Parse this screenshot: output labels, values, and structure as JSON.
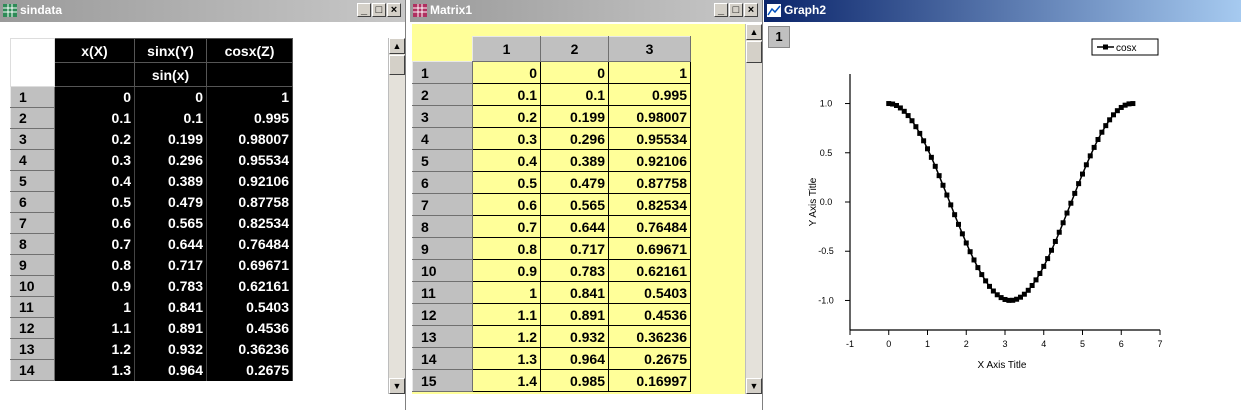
{
  "sindata": {
    "title": "sindata",
    "controls": [
      "_",
      "□",
      "×"
    ],
    "columns": [
      "x(X)",
      "sinx(Y)",
      "cosx(Z)"
    ],
    "labels": [
      "",
      "sin(x)",
      ""
    ],
    "rows": [
      [
        "1",
        "0",
        "0",
        "1"
      ],
      [
        "2",
        "0.1",
        "0.1",
        "0.995"
      ],
      [
        "3",
        "0.2",
        "0.199",
        "0.98007"
      ],
      [
        "4",
        "0.3",
        "0.296",
        "0.95534"
      ],
      [
        "5",
        "0.4",
        "0.389",
        "0.92106"
      ],
      [
        "6",
        "0.5",
        "0.479",
        "0.87758"
      ],
      [
        "7",
        "0.6",
        "0.565",
        "0.82534"
      ],
      [
        "8",
        "0.7",
        "0.644",
        "0.76484"
      ],
      [
        "9",
        "0.8",
        "0.717",
        "0.69671"
      ],
      [
        "10",
        "0.9",
        "0.783",
        "0.62161"
      ],
      [
        "11",
        "1",
        "0.841",
        "0.5403"
      ],
      [
        "12",
        "1.1",
        "0.891",
        "0.4536"
      ],
      [
        "13",
        "1.2",
        "0.932",
        "0.36236"
      ],
      [
        "14",
        "1.3",
        "0.964",
        "0.2675"
      ]
    ]
  },
  "matrix": {
    "title": "Matrix1",
    "controls": [
      "_",
      "□",
      "×"
    ],
    "columns": [
      "1",
      "2",
      "3"
    ],
    "rows": [
      [
        "1",
        "0",
        "0",
        "1"
      ],
      [
        "2",
        "0.1",
        "0.1",
        "0.995"
      ],
      [
        "3",
        "0.2",
        "0.199",
        "0.98007"
      ],
      [
        "4",
        "0.3",
        "0.296",
        "0.95534"
      ],
      [
        "5",
        "0.4",
        "0.389",
        "0.92106"
      ],
      [
        "6",
        "0.5",
        "0.479",
        "0.87758"
      ],
      [
        "7",
        "0.6",
        "0.565",
        "0.82534"
      ],
      [
        "8",
        "0.7",
        "0.644",
        "0.76484"
      ],
      [
        "9",
        "0.8",
        "0.717",
        "0.69671"
      ],
      [
        "10",
        "0.9",
        "0.783",
        "0.62161"
      ],
      [
        "11",
        "1",
        "0.841",
        "0.5403"
      ],
      [
        "12",
        "1.1",
        "0.891",
        "0.4536"
      ],
      [
        "13",
        "1.2",
        "0.932",
        "0.36236"
      ],
      [
        "14",
        "1.3",
        "0.964",
        "0.2675"
      ],
      [
        "15",
        "1.4",
        "0.985",
        "0.16997"
      ]
    ]
  },
  "graph": {
    "title": "Graph2",
    "layer_tab": "1",
    "chart_data": {
      "type": "line",
      "xlabel": "X Axis Title",
      "ylabel": "Y Axis Title",
      "xlim": [
        -1,
        7
      ],
      "ylim": [
        -1.3,
        1.3
      ],
      "xticks": [
        "-1",
        "0",
        "1",
        "2",
        "3",
        "4",
        "5",
        "6",
        "7"
      ],
      "yticks": [
        "1.0",
        "0.5",
        "0.0",
        "-0.5",
        "-1.0"
      ],
      "ytick_values": [
        1.0,
        0.5,
        0.0,
        -0.5,
        -1.0
      ],
      "legend": "cosx",
      "series": [
        {
          "name": "cosx",
          "x": [
            0,
            0.1,
            0.2,
            0.3,
            0.4,
            0.5,
            0.6,
            0.7,
            0.8,
            0.9,
            1,
            1.1,
            1.2,
            1.3,
            1.4,
            1.5,
            1.6,
            1.7,
            1.8,
            1.9,
            2,
            2.1,
            2.2,
            2.3,
            2.4,
            2.5,
            2.6,
            2.7,
            2.8,
            2.9,
            3,
            3.1,
            3.2,
            3.3,
            3.4,
            3.5,
            3.6,
            3.7,
            3.8,
            3.9,
            4,
            4.1,
            4.2,
            4.3,
            4.4,
            4.5,
            4.6,
            4.7,
            4.8,
            4.9,
            5,
            5.1,
            5.2,
            5.3,
            5.4,
            5.5,
            5.6,
            5.7,
            5.8,
            5.9,
            6,
            6.1,
            6.2,
            6.3
          ],
          "y": [
            1,
            0.995,
            0.98007,
            0.95534,
            0.92106,
            0.87758,
            0.82534,
            0.76484,
            0.69671,
            0.62161,
            0.5403,
            0.4536,
            0.36236,
            0.2675,
            0.16997,
            0.07074,
            -0.0292,
            -0.12884,
            -0.2272,
            -0.32329,
            -0.41615,
            -0.50485,
            -0.5885,
            -0.66628,
            -0.73739,
            -0.80114,
            -0.85689,
            -0.90407,
            -0.94222,
            -0.97096,
            -0.98999,
            -0.99914,
            -0.99829,
            -0.98748,
            -0.9668,
            -0.93646,
            -0.89676,
            -0.8481,
            -0.79097,
            -0.72593,
            -0.65364,
            -0.57482,
            -0.49026,
            -0.4008,
            -0.30733,
            -0.2108,
            -0.11215,
            -0.01239,
            0.0875,
            0.18651,
            0.28366,
            0.37798,
            0.46852,
            0.55437,
            0.63469,
            0.70867,
            0.77557,
            0.83471,
            0.88552,
            0.92748,
            0.96017,
            0.98327,
            0.99654,
            0.99985
          ]
        }
      ]
    }
  }
}
